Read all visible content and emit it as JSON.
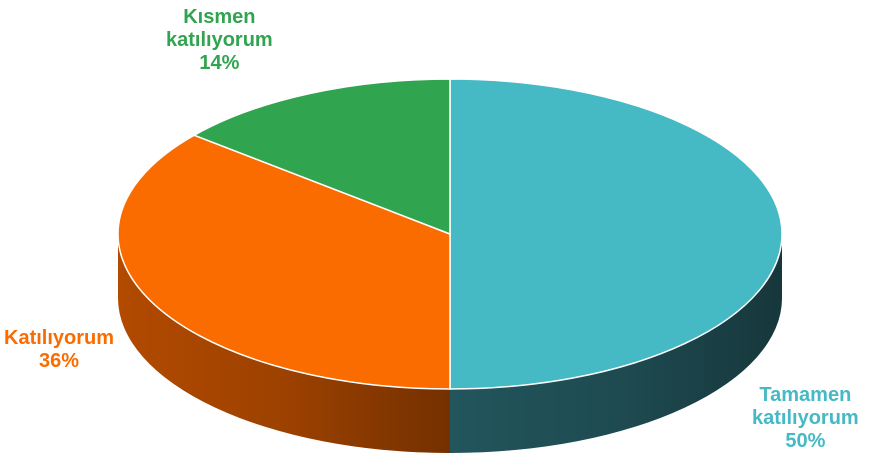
{
  "chart_data": {
    "type": "pie",
    "style": "3d",
    "slices": [
      {
        "label_lines": [
          "Tamamen",
          "katılıyorum"
        ],
        "percent_label": "50%",
        "value": 50,
        "color": "#45b9c4",
        "side_color": "#22555c",
        "label_color": "#45b9c4"
      },
      {
        "label_lines": [
          "Katılıyorum"
        ],
        "percent_label": "36%",
        "value": 36,
        "color": "#fa6c00",
        "side_color": "#b24a00",
        "label_color": "#fa6c00"
      },
      {
        "label_lines": [
          "Kısmen",
          "katılıyorum"
        ],
        "percent_label": "14%",
        "value": 14,
        "color": "#31a450",
        "side_color": "#1f6e35",
        "label_color": "#31a450"
      }
    ]
  }
}
